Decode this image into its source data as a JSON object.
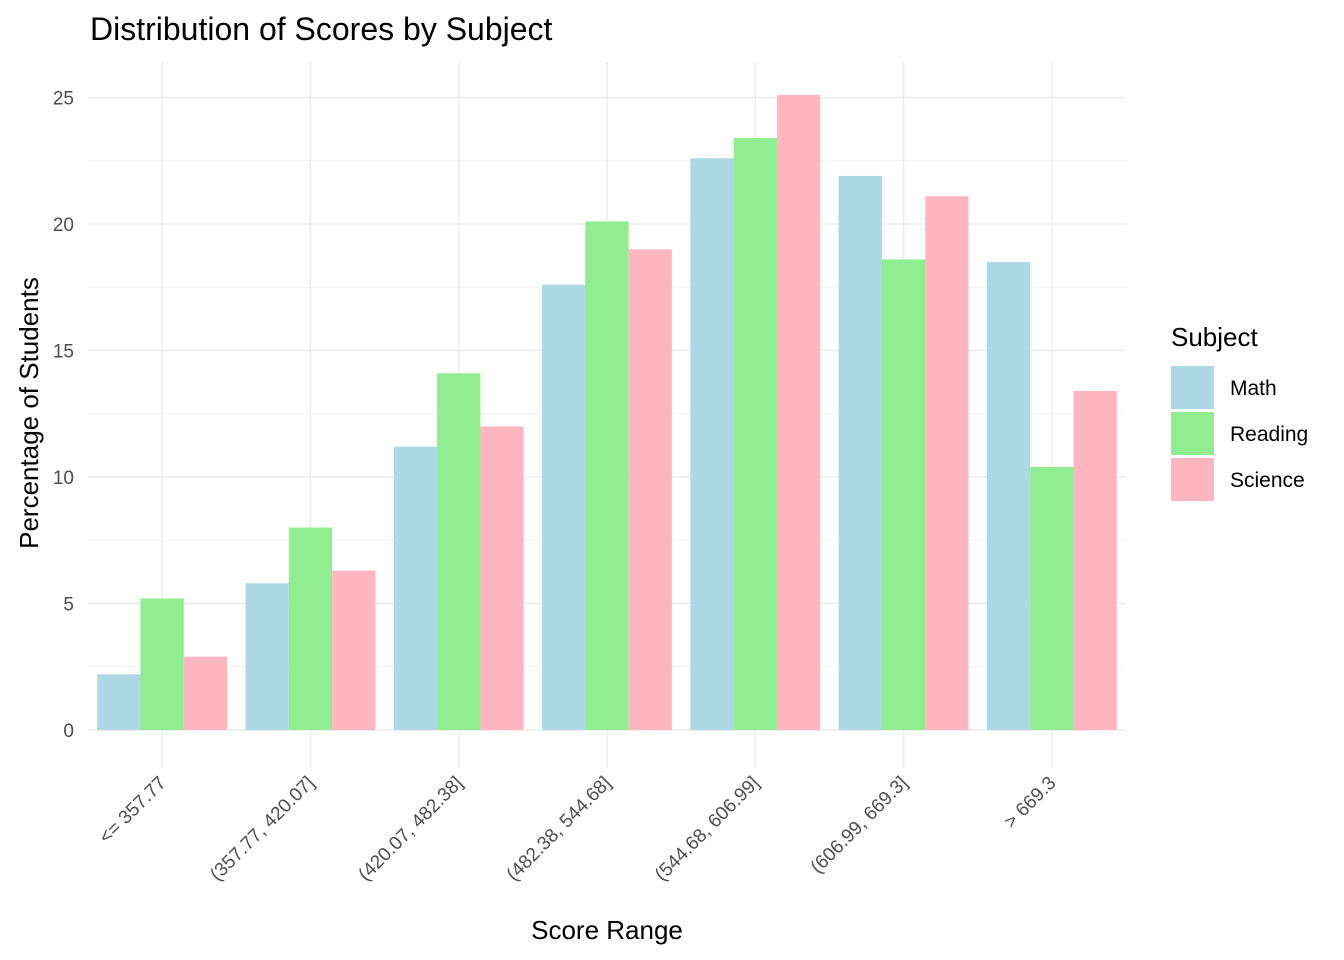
{
  "chart_data": {
    "type": "bar",
    "title": "Distribution of Scores by Subject",
    "xlabel": "Score Range",
    "ylabel": "Percentage of Students",
    "categories": [
      "<= 357.77",
      "(357.77, 420.07]",
      "(420.07, 482.38]",
      "(482.38, 544.68]",
      "(544.68, 606.99]",
      "(606.99, 669.3]",
      "> 669.3"
    ],
    "series": [
      {
        "name": "Math",
        "color": "#add8e6",
        "values": [
          2.2,
          5.8,
          11.2,
          17.6,
          22.6,
          21.9,
          18.5
        ]
      },
      {
        "name": "Reading",
        "color": "#90ee90",
        "values": [
          5.2,
          8.0,
          14.1,
          20.1,
          23.4,
          18.6,
          10.4
        ]
      },
      {
        "name": "Science",
        "color": "#ffb6c1",
        "values": [
          2.9,
          6.3,
          12.0,
          19.0,
          25.1,
          21.1,
          13.4
        ]
      }
    ],
    "ylim": [
      0,
      26
    ],
    "yticks": [
      "0",
      "5",
      "10",
      "15",
      "20",
      "25"
    ],
    "grid": true,
    "legend": {
      "title": "Subject",
      "position": "right"
    }
  }
}
